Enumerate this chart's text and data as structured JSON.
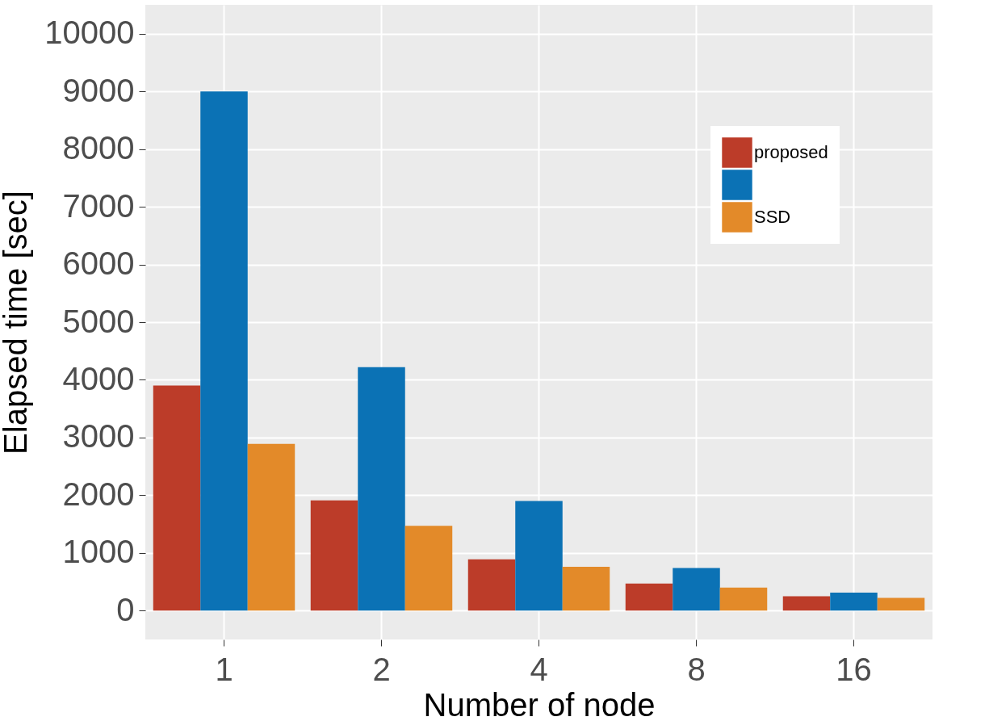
{
  "chart_data": {
    "type": "bar",
    "xlabel": "Number of node",
    "ylabel": "Elapsed time [sec]",
    "categories": [
      "1",
      "2",
      "4",
      "8",
      "16"
    ],
    "series": [
      {
        "name": "proposed",
        "color": "#bc3c29",
        "values": [
          3900,
          1910,
          890,
          470,
          250
        ]
      },
      {
        "color": "#0b72b5",
        "values": [
          9000,
          4220,
          1900,
          740,
          310
        ]
      },
      {
        "name": "SSD",
        "color": "#e38a29",
        "values": [
          2890,
          1470,
          760,
          400,
          220
        ]
      }
    ],
    "ylim": [
      -500,
      10500
    ],
    "yticks": [
      0,
      1000,
      2000,
      3000,
      4000,
      5000,
      6000,
      7000,
      8000,
      9000,
      10000
    ],
    "grid": true,
    "legend": "top right"
  }
}
